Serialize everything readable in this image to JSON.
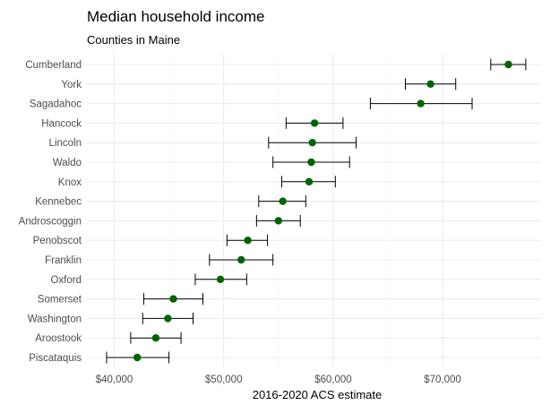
{
  "chart_data": {
    "type": "scatter",
    "title": "Median household income",
    "subtitle": "Counties in Maine",
    "xlabel": "2016-2020 ACS estimate",
    "ylabel": "",
    "xlim": [
      37500,
      79000
    ],
    "x_ticks": [
      40000,
      50000,
      60000,
      70000
    ],
    "x_tick_labels": [
      "$40,000",
      "$50,000",
      "$60,000",
      "$70,000"
    ],
    "grid": true,
    "point_color": "#006400",
    "error_bar_color": "#000000",
    "points": [
      {
        "label": "Cumberland",
        "estimate": 76014,
        "low": 74400,
        "high": 77600
      },
      {
        "label": "York",
        "estimate": 68900,
        "low": 66600,
        "high": 71200
      },
      {
        "label": "Sagadahoc",
        "estimate": 68000,
        "low": 63400,
        "high": 72700
      },
      {
        "label": "Hancock",
        "estimate": 58300,
        "low": 55700,
        "high": 60900
      },
      {
        "label": "Lincoln",
        "estimate": 58100,
        "low": 54100,
        "high": 62100
      },
      {
        "label": "Waldo",
        "estimate": 58000,
        "low": 54500,
        "high": 61500
      },
      {
        "label": "Knox",
        "estimate": 57800,
        "low": 55300,
        "high": 60200
      },
      {
        "label": "Kennebec",
        "estimate": 55400,
        "low": 53200,
        "high": 57500
      },
      {
        "label": "Androscoggin",
        "estimate": 55000,
        "low": 53000,
        "high": 57000
      },
      {
        "label": "Penobscot",
        "estimate": 52200,
        "low": 50300,
        "high": 54000
      },
      {
        "label": "Franklin",
        "estimate": 51600,
        "low": 48700,
        "high": 54500
      },
      {
        "label": "Oxford",
        "estimate": 49700,
        "low": 47400,
        "high": 52100
      },
      {
        "label": "Somerset",
        "estimate": 45400,
        "low": 42700,
        "high": 48100
      },
      {
        "label": "Washington",
        "estimate": 44900,
        "low": 42600,
        "high": 47200
      },
      {
        "label": "Aroostook",
        "estimate": 43800,
        "low": 41500,
        "high": 46100
      },
      {
        "label": "Piscataquis",
        "estimate": 42100,
        "low": 39300,
        "high": 45000
      }
    ]
  }
}
